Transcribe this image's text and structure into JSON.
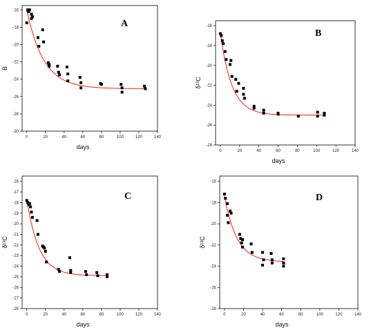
{
  "chart_data": [
    {
      "type": "scatter",
      "panel_label": "A",
      "xlabel": "days",
      "ylabel": "B",
      "xlim": [
        -5,
        140
      ],
      "ylim": [
        -30,
        -15.5
      ],
      "xticks": [
        0,
        20,
        40,
        60,
        80,
        100,
        120,
        140
      ],
      "yticks": [
        -30,
        -28,
        -26,
        -24,
        -22,
        -20,
        -18,
        -16
      ],
      "fit": {
        "type": "exponential",
        "a": -25.1,
        "b": 9.1,
        "tau": 18,
        "color": "#ff0000",
        "x_range": [
          0,
          128
        ]
      },
      "points": [
        [
          0,
          -17.5
        ],
        [
          1,
          -16
        ],
        [
          2,
          -16.2
        ],
        [
          3,
          -16
        ],
        [
          5,
          -16.5
        ],
        [
          5,
          -17
        ],
        [
          6,
          -16.8
        ],
        [
          12,
          -19.2
        ],
        [
          13,
          -20.2
        ],
        [
          17,
          -18.3
        ],
        [
          18,
          -19.7
        ],
        [
          23,
          -22.1
        ],
        [
          24,
          -22.3
        ],
        [
          24,
          -22.5
        ],
        [
          33,
          -22.5
        ],
        [
          34,
          -23.2
        ],
        [
          35,
          -23.5
        ],
        [
          43,
          -22.6
        ],
        [
          44,
          -23.4
        ],
        [
          44,
          -24.2
        ],
        [
          57,
          -23.8
        ],
        [
          58,
          -24.4
        ],
        [
          58,
          -25
        ],
        [
          79,
          -24.5
        ],
        [
          80,
          -24.6
        ],
        [
          101,
          -24.6
        ],
        [
          102,
          -25
        ],
        [
          102,
          -25.5
        ],
        [
          126,
          -24.8
        ],
        [
          127,
          -25.1
        ]
      ]
    },
    {
      "type": "scatter",
      "panel_label": "B",
      "xlabel": "days",
      "ylabel": "δ¹³C",
      "xlim": [
        -5,
        140
      ],
      "ylim": [
        -28,
        -15.5
      ],
      "xticks": [
        0,
        20,
        40,
        60,
        80,
        100,
        120,
        140
      ],
      "yticks": [
        -28,
        -26,
        -24,
        -22,
        -20,
        -18,
        -16
      ],
      "fit": {
        "type": "exponential",
        "a": -25.0,
        "b": 8.2,
        "tau": 12,
        "color": "#ff0000",
        "x_range": [
          0,
          108
        ]
      },
      "points": [
        [
          0,
          -16.8
        ],
        [
          1,
          -17
        ],
        [
          2,
          -17.5
        ],
        [
          3,
          -17.8
        ],
        [
          5,
          -18.6
        ],
        [
          6,
          -19.4
        ],
        [
          10,
          -19.9
        ],
        [
          11,
          -19.5
        ],
        [
          12,
          -21.1
        ],
        [
          16,
          -21.4
        ],
        [
          17,
          -22.6
        ],
        [
          19,
          -21.8
        ],
        [
          24,
          -22.3
        ],
        [
          24,
          -22.9
        ],
        [
          25,
          -23.3
        ],
        [
          35,
          -24.1
        ],
        [
          35,
          -24.3
        ],
        [
          45,
          -24.5
        ],
        [
          45,
          -24.8
        ],
        [
          60,
          -24.8
        ],
        [
          60,
          -24.9
        ],
        [
          81,
          -25.1
        ],
        [
          101,
          -24.7
        ],
        [
          101,
          -25.1
        ],
        [
          108,
          -24.8
        ],
        [
          108,
          -25
        ]
      ]
    },
    {
      "type": "scatter",
      "panel_label": "C",
      "xlabel": "days",
      "ylabel": "δ¹³C",
      "xlim": [
        -5,
        140
      ],
      "ylim": [
        -28,
        -15.5
      ],
      "xticks": [
        0,
        20,
        40,
        60,
        80,
        100,
        120,
        140
      ],
      "yticks": [
        -28,
        -27,
        -26,
        -25,
        -24,
        -23,
        -22,
        -21,
        -20,
        -19,
        -18,
        -17,
        -16
      ],
      "fit": {
        "type": "exponential",
        "a": -24.9,
        "b": 7.2,
        "tau": 13,
        "color": "#ff0000",
        "x_range": [
          0,
          86
        ]
      },
      "points": [
        [
          0,
          -17.8
        ],
        [
          1,
          -18
        ],
        [
          2,
          -18.2
        ],
        [
          3,
          -18.1
        ],
        [
          4,
          -18.4
        ],
        [
          5,
          -18.9
        ],
        [
          6,
          -19.4
        ],
        [
          11,
          -19.7
        ],
        [
          12,
          -21
        ],
        [
          17,
          -22.1
        ],
        [
          18,
          -22.2
        ],
        [
          19,
          -22.3
        ],
        [
          20,
          -22.6
        ],
        [
          21,
          -23.6
        ],
        [
          34,
          -24.3
        ],
        [
          35,
          -24.5
        ],
        [
          46,
          -23.2
        ],
        [
          47,
          -24.4
        ],
        [
          47,
          -24.6
        ],
        [
          63,
          -24.5
        ],
        [
          64,
          -24.8
        ],
        [
          75,
          -24.6
        ],
        [
          76,
          -24.9
        ],
        [
          86,
          -24.8
        ],
        [
          86,
          -25
        ]
      ]
    },
    {
      "type": "scatter",
      "panel_label": "D",
      "xlabel": "days",
      "ylabel": "δ¹³C",
      "xlim": [
        -5,
        140
      ],
      "ylim": [
        -28,
        -15.5
      ],
      "xticks": [
        0,
        20,
        40,
        60,
        80,
        100,
        120,
        140
      ],
      "yticks": [
        -28,
        -26,
        -24,
        -22,
        -20,
        -18,
        -16
      ],
      "fit": {
        "type": "exponential",
        "a": -23.6,
        "b": 6.2,
        "tau": 13,
        "color": "#ff0000",
        "x_range": [
          0,
          62
        ]
      },
      "points": [
        [
          0,
          -17.2
        ],
        [
          1,
          -17.6
        ],
        [
          3,
          -18.1
        ],
        [
          3,
          -19.2
        ],
        [
          4,
          -19.9
        ],
        [
          6,
          -18.8
        ],
        [
          7,
          -19
        ],
        [
          16,
          -21
        ],
        [
          17,
          -21.4
        ],
        [
          18,
          -21.8
        ],
        [
          19,
          -21.5
        ],
        [
          19,
          -22.2
        ],
        [
          28,
          -21.9
        ],
        [
          29,
          -22.7
        ],
        [
          40,
          -22.7
        ],
        [
          40,
          -23.9
        ],
        [
          41,
          -23.4
        ],
        [
          49,
          -22.8
        ],
        [
          50,
          -23.4
        ],
        [
          50,
          -23.7
        ],
        [
          62,
          -23.3
        ],
        [
          62,
          -23.7
        ],
        [
          62,
          -24
        ]
      ]
    }
  ]
}
